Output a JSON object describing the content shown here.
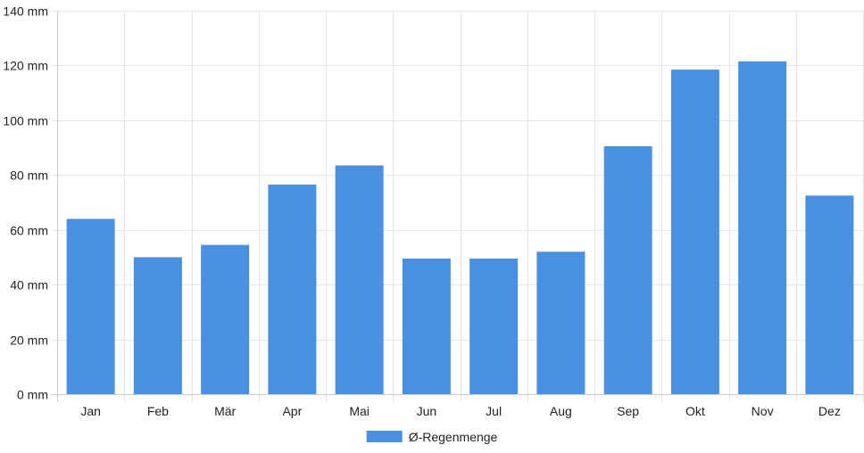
{
  "chart_data": {
    "type": "bar",
    "categories": [
      "Jan",
      "Feb",
      "Mär",
      "Apr",
      "Mai",
      "Jun",
      "Jul",
      "Aug",
      "Sep",
      "Okt",
      "Nov",
      "Dez"
    ],
    "series": [
      {
        "name": "Ø-Regenmenge",
        "values": [
          64,
          50,
          54.5,
          76.5,
          83.5,
          49.5,
          49.5,
          52,
          90.5,
          118.5,
          121.5,
          72.5
        ],
        "color": "#4a90e2"
      }
    ],
    "y_ticks": [
      "0 mm",
      "20 mm",
      "40 mm",
      "60 mm",
      "80 mm",
      "100 mm",
      "120 mm",
      "140 mm"
    ],
    "ylim": [
      0,
      140
    ],
    "grid": true,
    "legend_position": "bottom"
  }
}
